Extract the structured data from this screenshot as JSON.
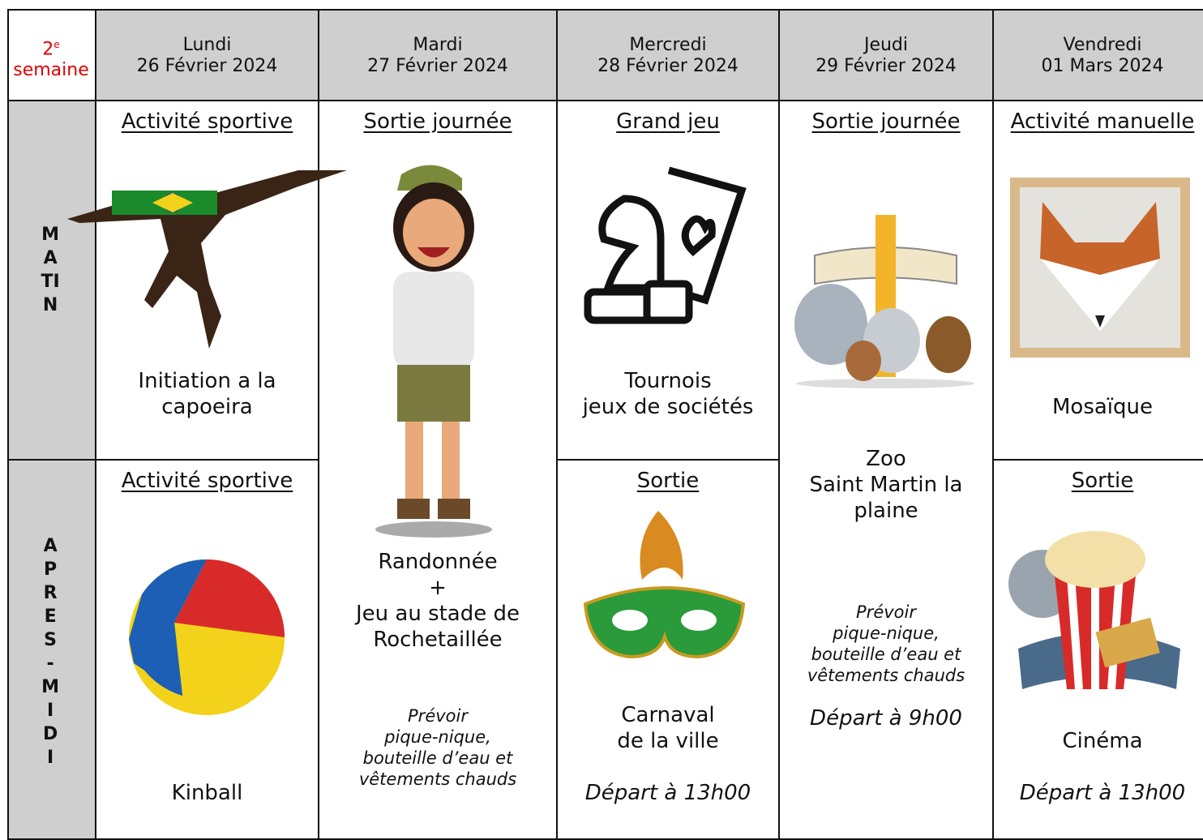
{
  "header": {
    "week": {
      "number": "2",
      "suffix": "e",
      "label": "semaine"
    },
    "days": [
      {
        "name": "Lundi",
        "date": "26 Février 2024"
      },
      {
        "name": "Mardi",
        "date": "27 Février 2024"
      },
      {
        "name": "Mercredi",
        "date": "28 Février 2024"
      },
      {
        "name": "Jeudi",
        "date": "29 Février 2024"
      },
      {
        "name": "Vendredi",
        "date": "01 Mars 2024"
      }
    ]
  },
  "periods": [
    "MATIN",
    "APRES-MIDI"
  ],
  "activities": [
    {
      "title": "Activité sportive",
      "text": "Initiation a la\ncapoeira"
    },
    {
      "title": "Activité sportive",
      "text": "Kinball"
    },
    {
      "title": "Sortie journée",
      "text": "Randonnée\n+\nJeu au stade de\nRochetaillée",
      "note": "Prévoir\npique-nique,\nbouteille d’eau et\nvêtements chauds"
    },
    {
      "title": "Grand jeu",
      "text": "Tournois\njeux de sociétés"
    },
    {
      "title": "Sortie",
      "text": "Carnaval\nde la ville",
      "departure": "Départ à 13h00"
    },
    {
      "title": "Sortie journée",
      "text": "Zoo\nSaint Martin la\nplaine",
      "note": "Prévoir\npique-nique,\nbouteille d’eau et\nvêtements chauds",
      "departure": "Départ à 9h00"
    },
    {
      "title": "Activité manuelle",
      "text": "Mosaïque"
    },
    {
      "title": "Sortie",
      "text": "Cinéma",
      "departure": "Départ à 13h00"
    }
  ]
}
